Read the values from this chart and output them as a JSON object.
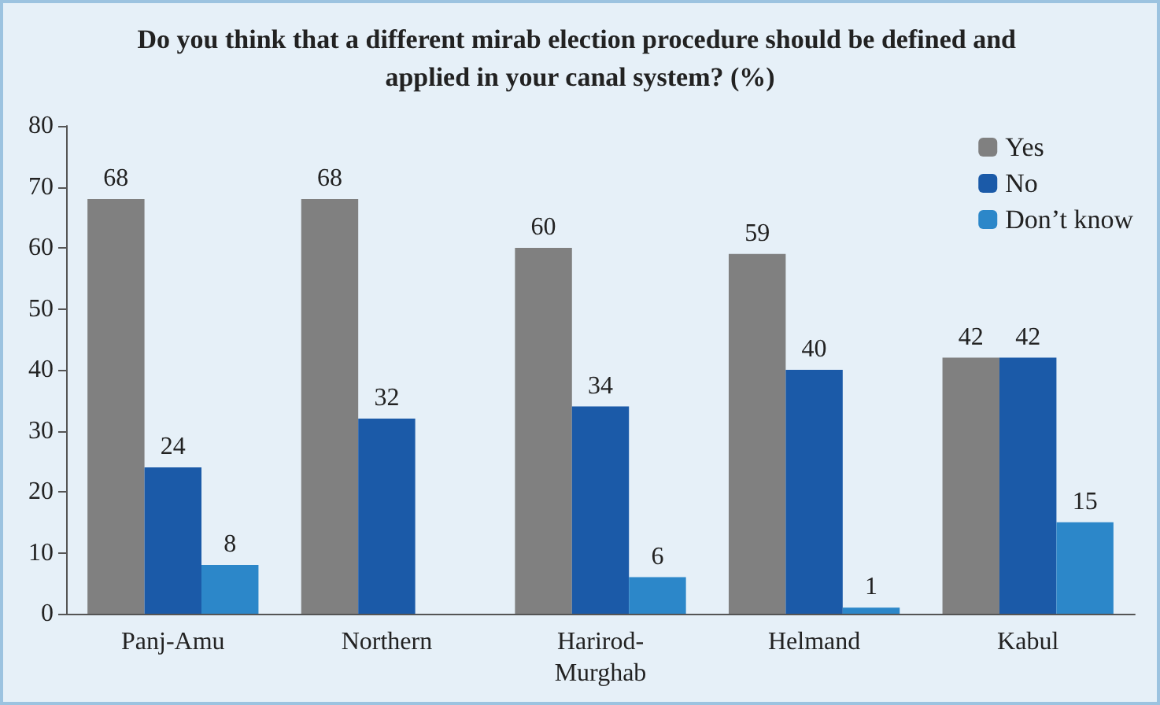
{
  "chart_data": {
    "type": "bar",
    "title": "Do you think that a different mirab election procedure should be defined and applied in your canal system? (%)",
    "categories": [
      "Panj-Amu",
      "Northern",
      "Harirod-Murghab",
      "Helmand",
      "Kabul"
    ],
    "series": [
      {
        "name": "Yes",
        "color": "#808080",
        "values": [
          68,
          68,
          60,
          59,
          42
        ]
      },
      {
        "name": "No",
        "color": "#1b5aa8",
        "values": [
          24,
          32,
          34,
          40,
          42
        ]
      },
      {
        "name": "Don’t know",
        "color": "#2c87c9",
        "values": [
          8,
          null,
          6,
          1,
          15
        ]
      }
    ],
    "ylim": [
      0,
      80
    ],
    "yticks": [
      0,
      10,
      20,
      30,
      40,
      50,
      60,
      70,
      80
    ],
    "grid": false,
    "legend": "top right",
    "data_labels": true
  }
}
